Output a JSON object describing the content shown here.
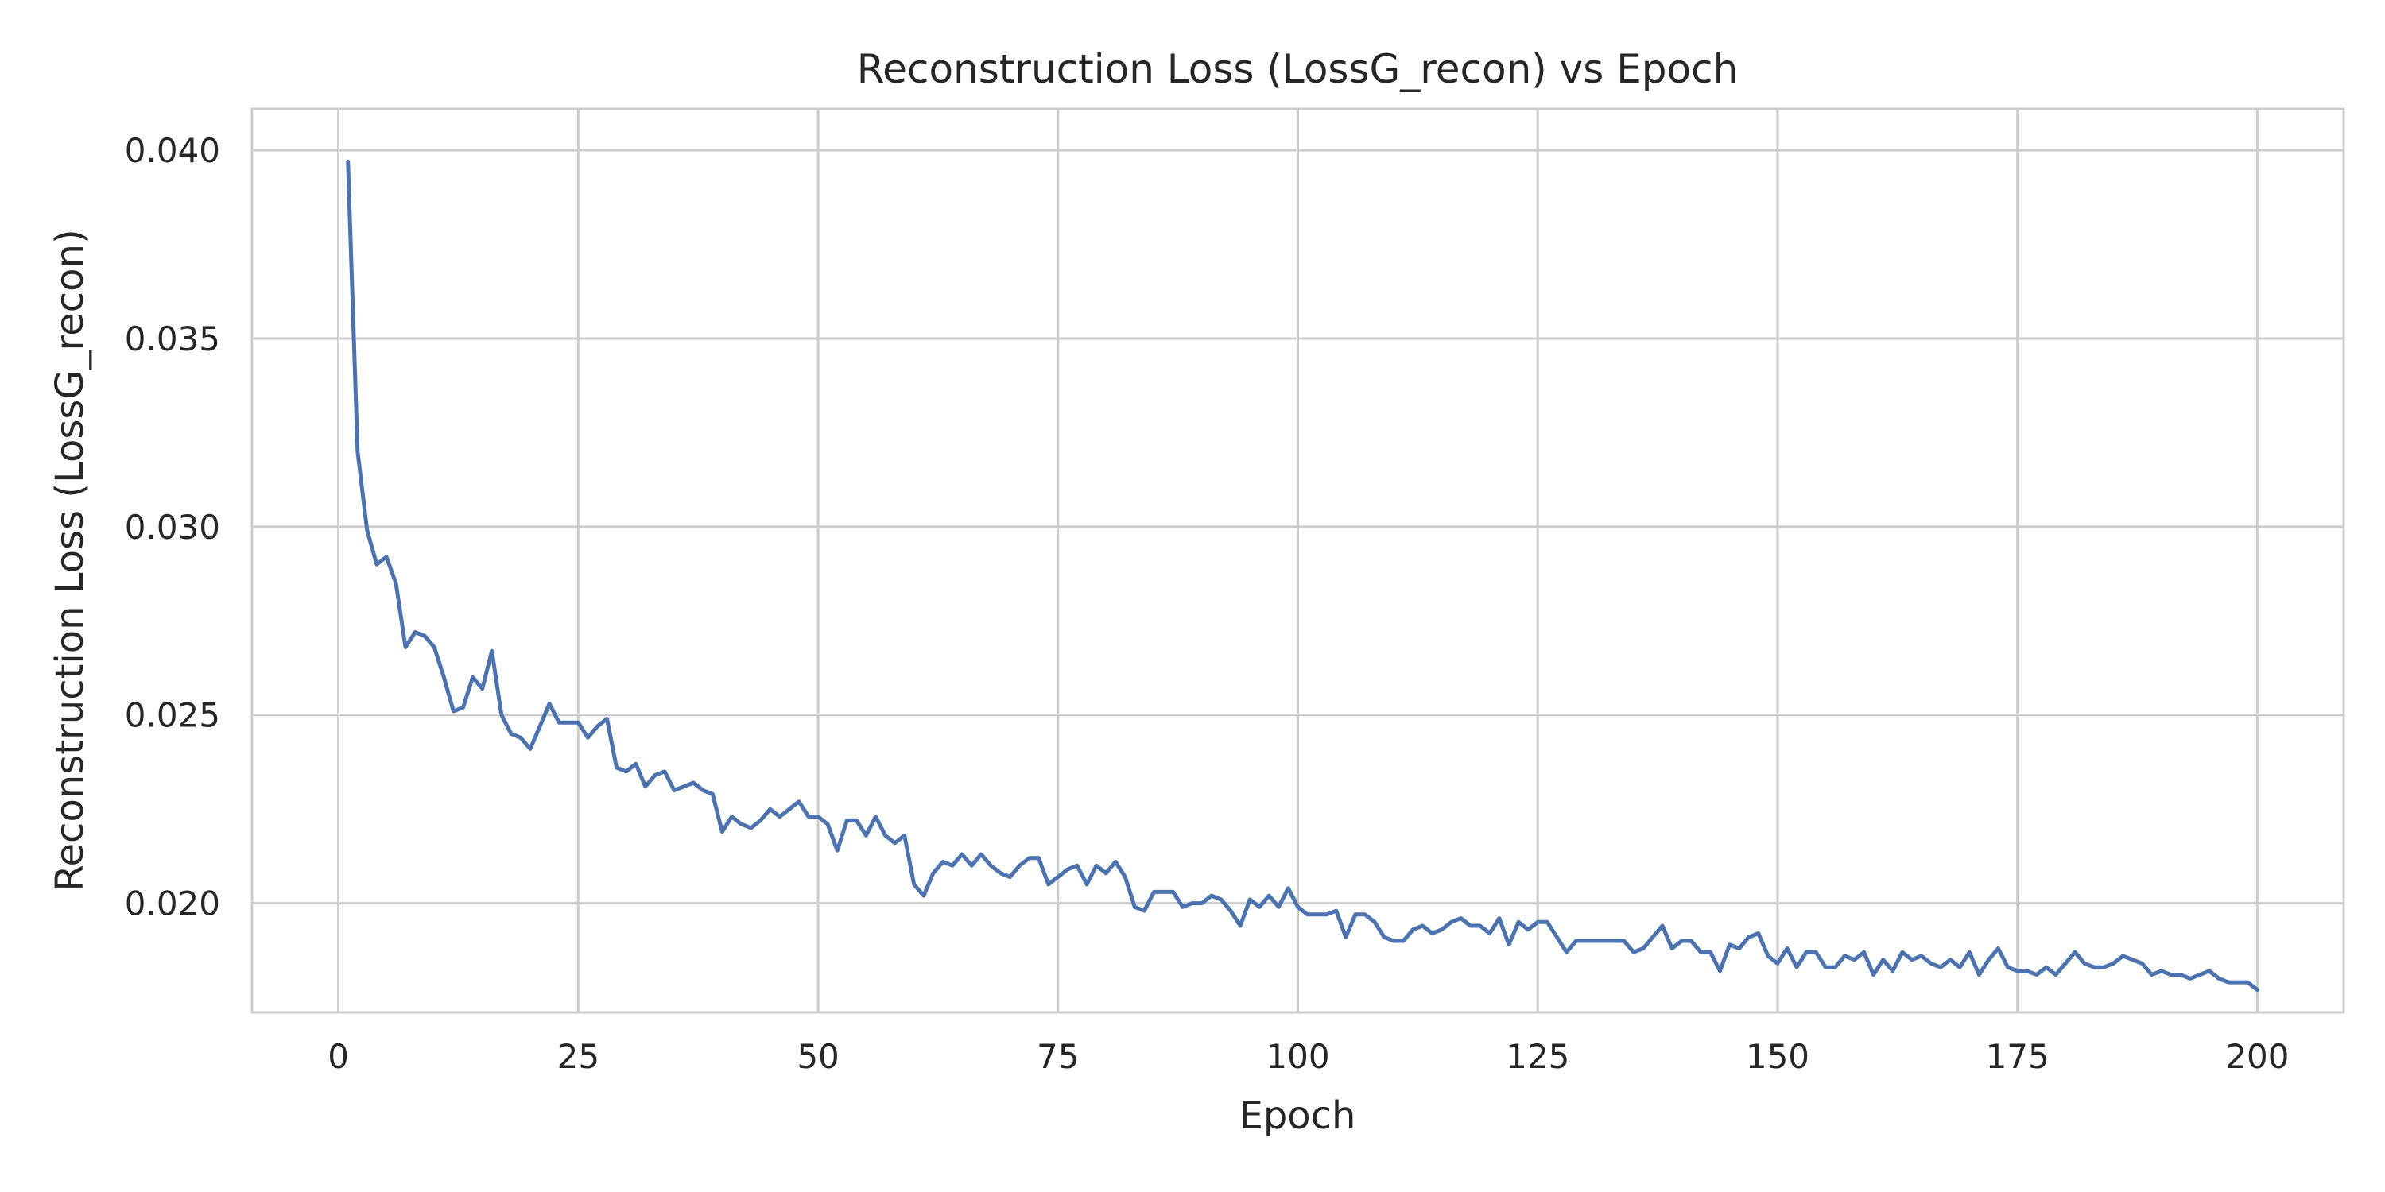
{
  "chart_data": {
    "type": "line",
    "title": "Reconstruction Loss (LossG_recon) vs Epoch",
    "xlabel": "Epoch",
    "ylabel": "Reconstruction Loss (LossG_recon)",
    "xlim": [
      -9,
      209
    ],
    "ylim": [
      0.0171,
      0.0411
    ],
    "xticks": [
      0,
      25,
      50,
      75,
      100,
      125,
      150,
      175,
      200
    ],
    "xtick_labels": [
      "0",
      "25",
      "50",
      "75",
      "100",
      "125",
      "150",
      "175",
      "200"
    ],
    "yticks": [
      0.02,
      0.025,
      0.03,
      0.035,
      0.04
    ],
    "ytick_labels": [
      "0.020",
      "0.025",
      "0.030",
      "0.035",
      "0.040"
    ],
    "grid": true,
    "line_color": "#4c72b0",
    "grid_color": "#cccccc",
    "series": [
      {
        "x": [
          1,
          2,
          3,
          4,
          5,
          6,
          7,
          8,
          9,
          10,
          11,
          12,
          13,
          14,
          15,
          16,
          17,
          18,
          19,
          20,
          21,
          22,
          23,
          24,
          25,
          26,
          27,
          28,
          29,
          30,
          31,
          32,
          33,
          34,
          35,
          36,
          37,
          38,
          39,
          40,
          41,
          42,
          43,
          44,
          45,
          46,
          47,
          48,
          49,
          50,
          51,
          52,
          53,
          54,
          55,
          56,
          57,
          58,
          59,
          60,
          61,
          62,
          63,
          64,
          65,
          66,
          67,
          68,
          69,
          70,
          71,
          72,
          73,
          74,
          75,
          76,
          77,
          78,
          79,
          80,
          81,
          82,
          83,
          84,
          85,
          86,
          87,
          88,
          89,
          90,
          91,
          92,
          93,
          94,
          95,
          96,
          97,
          98,
          99,
          100,
          101,
          102,
          103,
          104,
          105,
          106,
          107,
          108,
          109,
          110,
          111,
          112,
          113,
          114,
          115,
          116,
          117,
          118,
          119,
          120,
          121,
          122,
          123,
          124,
          125,
          126,
          127,
          128,
          129,
          130,
          131,
          132,
          133,
          134,
          135,
          136,
          137,
          138,
          139,
          140,
          141,
          142,
          143,
          144,
          145,
          146,
          147,
          148,
          149,
          150,
          151,
          152,
          153,
          154,
          155,
          156,
          157,
          158,
          159,
          160,
          161,
          162,
          163,
          164,
          165,
          166,
          167,
          168,
          169,
          170,
          171,
          172,
          173,
          174,
          175,
          176,
          177,
          178,
          179,
          180,
          181,
          182,
          183,
          184,
          185,
          186,
          187,
          188,
          189,
          190,
          191,
          192,
          193,
          194,
          195,
          196,
          197,
          198,
          199,
          200
        ],
        "values": [
          0.0397,
          0.032,
          0.0299,
          0.029,
          0.0292,
          0.0285,
          0.0268,
          0.0272,
          0.0271,
          0.0268,
          0.026,
          0.0251,
          0.0252,
          0.026,
          0.0257,
          0.0267,
          0.025,
          0.0245,
          0.0244,
          0.0241,
          0.0247,
          0.0253,
          0.0248,
          0.0248,
          0.0248,
          0.0244,
          0.0247,
          0.0249,
          0.0236,
          0.0235,
          0.0237,
          0.0231,
          0.0234,
          0.0235,
          0.023,
          0.0231,
          0.0232,
          0.023,
          0.0229,
          0.0219,
          0.0223,
          0.0221,
          0.022,
          0.0222,
          0.0225,
          0.0223,
          0.0225,
          0.0227,
          0.0223,
          0.0223,
          0.0221,
          0.0214,
          0.0222,
          0.0222,
          0.0218,
          0.0223,
          0.0218,
          0.0216,
          0.0218,
          0.0205,
          0.0202,
          0.0208,
          0.0211,
          0.021,
          0.0213,
          0.021,
          0.0213,
          0.021,
          0.0208,
          0.0207,
          0.021,
          0.0212,
          0.0212,
          0.0205,
          0.0207,
          0.0209,
          0.021,
          0.0205,
          0.021,
          0.0208,
          0.0211,
          0.0207,
          0.0199,
          0.0198,
          0.0203,
          0.0203,
          0.0203,
          0.0199,
          0.02,
          0.02,
          0.0202,
          0.0201,
          0.0198,
          0.0194,
          0.0201,
          0.0199,
          0.0202,
          0.0199,
          0.0204,
          0.0199,
          0.0197,
          0.0197,
          0.0197,
          0.0198,
          0.0191,
          0.0197,
          0.0197,
          0.0195,
          0.0191,
          0.019,
          0.019,
          0.0193,
          0.0194,
          0.0192,
          0.0193,
          0.0195,
          0.0196,
          0.0194,
          0.0194,
          0.0192,
          0.0196,
          0.0189,
          0.0195,
          0.0193,
          0.0195,
          0.0195,
          0.0191,
          0.0187,
          0.019,
          0.019,
          0.019,
          0.019,
          0.019,
          0.019,
          0.0187,
          0.0188,
          0.0191,
          0.0194,
          0.0188,
          0.019,
          0.019,
          0.0187,
          0.0187,
          0.0182,
          0.0189,
          0.0188,
          0.0191,
          0.0192,
          0.0186,
          0.0184,
          0.0188,
          0.0183,
          0.0187,
          0.0187,
          0.0183,
          0.0183,
          0.0186,
          0.0185,
          0.0187,
          0.0181,
          0.0185,
          0.0182,
          0.0187,
          0.0185,
          0.0186,
          0.0184,
          0.0183,
          0.0185,
          0.0183,
          0.0187,
          0.0181,
          0.0185,
          0.0188,
          0.0183,
          0.0182,
          0.0182,
          0.0181,
          0.0183,
          0.0181,
          0.0184,
          0.0187,
          0.0184,
          0.0183,
          0.0183,
          0.0184,
          0.0186,
          0.0185,
          0.0184,
          0.0181,
          0.0182,
          0.0181,
          0.0181,
          0.018,
          0.0181,
          0.0182,
          0.018,
          0.0179,
          0.0179,
          0.0179,
          0.0177
        ]
      }
    ]
  }
}
